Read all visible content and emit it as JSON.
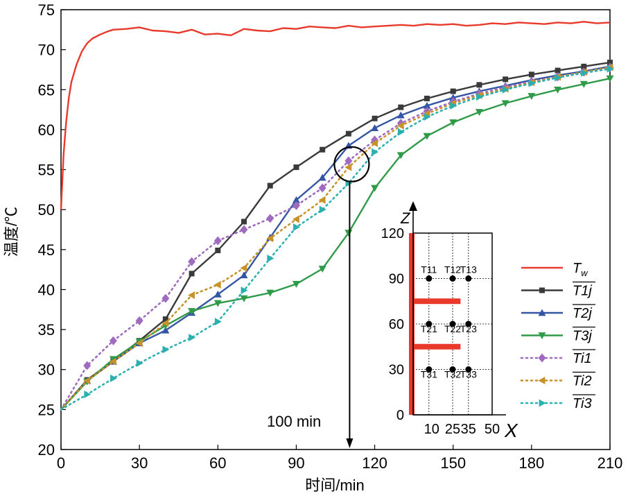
{
  "chart_data": {
    "type": "line",
    "xlabel": "时间/min",
    "ylabel": "温度/℃",
    "xlim": [
      0,
      210
    ],
    "ylim": [
      20,
      75
    ],
    "xticks": [
      0,
      30,
      60,
      90,
      120,
      150,
      180,
      210
    ],
    "yticks": [
      20,
      25,
      30,
      35,
      40,
      45,
      50,
      55,
      60,
      65,
      70,
      75
    ],
    "annotation": {
      "label": "100 min",
      "x": 112,
      "y": 55.5
    },
    "series": [
      {
        "name": "Tw",
        "legend": "T",
        "legend_sub": "w",
        "overline": false,
        "color": "#e8392b",
        "style": "solid",
        "marker": "none",
        "x": [
          0,
          1,
          2,
          3,
          4,
          6,
          8,
          10,
          12,
          15,
          18,
          20,
          25,
          30,
          35,
          40,
          45,
          50,
          55,
          60,
          65,
          70,
          75,
          80,
          85,
          90,
          95,
          100,
          105,
          110,
          115,
          120,
          125,
          130,
          135,
          140,
          145,
          150,
          155,
          160,
          165,
          170,
          175,
          180,
          185,
          190,
          195,
          200,
          205,
          210
        ],
        "y": [
          50,
          57,
          61,
          64,
          66,
          68.2,
          69.8,
          70.8,
          71.4,
          71.9,
          72.3,
          72.5,
          72.6,
          72.8,
          72.4,
          72.3,
          72.1,
          72.5,
          71.9,
          72.0,
          71.8,
          72.6,
          72.4,
          72.3,
          72.7,
          72.6,
          72.9,
          72.8,
          72.7,
          73.0,
          72.8,
          72.9,
          73.0,
          73.1,
          73.0,
          73.2,
          73.1,
          73.2,
          73.0,
          73.1,
          73.3,
          73.2,
          73.4,
          73.3,
          73.2,
          73.4,
          73.3,
          73.5,
          73.3,
          73.4
        ]
      },
      {
        "name": "T1j",
        "legend": "T1j",
        "legend_sub": "",
        "overline": true,
        "color": "#3a3a3a",
        "style": "solid",
        "marker": "square",
        "x": [
          0,
          10,
          20,
          30,
          40,
          50,
          60,
          70,
          80,
          90,
          100,
          110,
          120,
          130,
          140,
          150,
          160,
          170,
          180,
          190,
          200,
          210
        ],
        "y": [
          25,
          28.7,
          31.1,
          33.6,
          36.3,
          42.0,
          44.9,
          48.5,
          53.0,
          55.3,
          57.5,
          59.5,
          61.4,
          62.8,
          63.9,
          64.8,
          65.6,
          66.3,
          66.9,
          67.4,
          67.9,
          68.4
        ]
      },
      {
        "name": "T2j",
        "legend": "T2j",
        "legend_sub": "",
        "overline": true,
        "color": "#3455a4",
        "style": "solid",
        "marker": "triangle-up",
        "x": [
          0,
          10,
          20,
          30,
          40,
          50,
          60,
          70,
          80,
          90,
          100,
          110,
          120,
          130,
          140,
          150,
          160,
          170,
          180,
          190,
          200,
          210
        ],
        "y": [
          25,
          28.6,
          31.0,
          33.3,
          34.9,
          37.1,
          39.4,
          41.8,
          46.5,
          51.2,
          54.0,
          58.0,
          60.2,
          61.8,
          63.0,
          64.0,
          64.8,
          65.5,
          66.2,
          66.8,
          67.3,
          67.9
        ]
      },
      {
        "name": "T3j",
        "legend": "T3j",
        "legend_sub": "",
        "overline": true,
        "color": "#2f9a48",
        "style": "solid",
        "marker": "triangle-down",
        "x": [
          0,
          10,
          20,
          30,
          40,
          50,
          60,
          70,
          80,
          90,
          100,
          110,
          120,
          130,
          140,
          150,
          160,
          170,
          180,
          190,
          200,
          210
        ],
        "y": [
          25,
          28.5,
          31.3,
          33.5,
          35.5,
          37.3,
          38.3,
          38.9,
          39.6,
          40.7,
          42.6,
          47.1,
          52.7,
          56.8,
          59.2,
          60.9,
          62.2,
          63.3,
          64.2,
          65.0,
          65.7,
          66.4
        ]
      },
      {
        "name": "Ti1",
        "legend": "Ti1",
        "legend_sub": "",
        "overline": true,
        "color": "#9f6bc0",
        "style": "dotted",
        "marker": "diamond",
        "x": [
          0,
          10,
          20,
          30,
          40,
          50,
          60,
          70,
          80,
          90,
          100,
          110,
          120,
          130,
          140,
          150,
          160,
          170,
          180,
          190,
          200,
          210
        ],
        "y": [
          25,
          30.5,
          33.6,
          36.1,
          38.9,
          43.5,
          46.1,
          47.5,
          48.9,
          50.5,
          52.7,
          56.1,
          58.7,
          60.8,
          62.3,
          63.5,
          64.5,
          65.3,
          66.0,
          66.6,
          67.2,
          67.8
        ]
      },
      {
        "name": "Ti2",
        "legend": "Ti2",
        "legend_sub": "",
        "overline": true,
        "color": "#c8922a",
        "style": "dotted",
        "marker": "triangle-left",
        "x": [
          0,
          10,
          20,
          30,
          40,
          50,
          60,
          70,
          80,
          90,
          100,
          110,
          120,
          130,
          140,
          150,
          160,
          170,
          180,
          190,
          200,
          210
        ],
        "y": [
          25,
          28.6,
          31.0,
          33.3,
          35.8,
          39.3,
          40.6,
          42.7,
          46.4,
          48.8,
          51.2,
          55.3,
          58.3,
          60.5,
          62.0,
          63.3,
          64.3,
          65.1,
          65.9,
          66.6,
          67.2,
          67.8
        ]
      },
      {
        "name": "Ti3",
        "legend": "Ti3",
        "legend_sub": "",
        "overline": true,
        "color": "#2bb0b0",
        "style": "dotted",
        "marker": "triangle-right",
        "x": [
          0,
          10,
          20,
          30,
          40,
          50,
          60,
          70,
          80,
          90,
          100,
          110,
          120,
          130,
          140,
          150,
          160,
          170,
          180,
          190,
          200,
          210
        ],
        "y": [
          25,
          26.9,
          28.9,
          30.8,
          32.5,
          34.0,
          36.0,
          39.9,
          43.9,
          47.8,
          50.0,
          53.3,
          57.2,
          59.7,
          61.6,
          63.0,
          64.1,
          65.0,
          65.8,
          66.5,
          67.1,
          67.6
        ]
      }
    ],
    "inset": {
      "xlabel": "X",
      "zlabel": "Z",
      "xticks": [
        10,
        25,
        35,
        50
      ],
      "zticks": [
        0,
        30,
        60,
        90,
        120
      ],
      "sensors": [
        {
          "label": "T11",
          "x": 10,
          "z": 90
        },
        {
          "label": "T12",
          "x": 25,
          "z": 90
        },
        {
          "label": "T13",
          "x": 35,
          "z": 90
        },
        {
          "label": "T21",
          "x": 10,
          "z": 60
        },
        {
          "label": "T22",
          "x": 25,
          "z": 60
        },
        {
          "label": "T23",
          "x": 35,
          "z": 60
        },
        {
          "label": "T31",
          "x": 10,
          "z": 30
        },
        {
          "label": "T32",
          "x": 25,
          "z": 30
        },
        {
          "label": "T33",
          "x": 35,
          "z": 30
        }
      ],
      "heater_bars": [
        {
          "z": 75,
          "x_end": 30
        },
        {
          "z": 45,
          "x_end": 30
        }
      ]
    }
  }
}
